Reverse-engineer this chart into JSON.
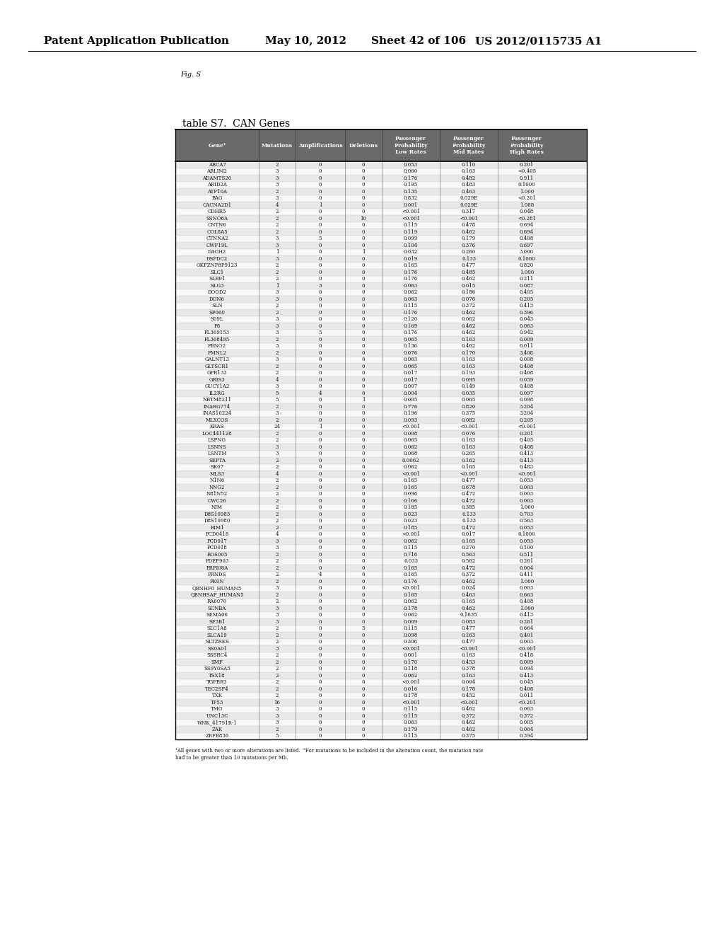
{
  "header_line1": "Patent Application Publication",
  "header_date": "May 10, 2012",
  "header_sheet": "Sheet 42 of 106",
  "header_patent": "US 2012/0115735 A1",
  "fig_label": "Fig. S",
  "table_title": "table S7.  CAN Genes",
  "col_headers": [
    "Gene¹",
    "Mutations",
    "Amplifications",
    "Deletions",
    "Passenger\nProbability\nLow Rates",
    "Passenger\nProbability\nMid Rates",
    "Passenger\nProbability\nHigh Rates"
  ],
  "rows": [
    [
      "ABCA7",
      "2",
      "0",
      "0",
      "0.053",
      "0.110",
      "0.201"
    ],
    [
      "ABLIM2",
      "3",
      "0",
      "0",
      "0.060",
      "0.163",
      "<0.405"
    ],
    [
      "ADAMTS20",
      "3",
      "0",
      "0",
      "0.176",
      "0.482",
      "0.911"
    ],
    [
      "ARID2A",
      "3",
      "0",
      "0",
      "0.195",
      "0.483",
      "0.1000"
    ],
    [
      "ATP10A",
      "2",
      "0",
      "0",
      "0.135",
      "0.463",
      "1.000"
    ],
    [
      "BAG",
      "3",
      "0",
      "0",
      "0.832",
      "0.029E",
      "<0.201"
    ],
    [
      "CACNA2D1",
      "4",
      "1",
      "0",
      "0.001",
      "0.029E",
      "1.088"
    ],
    [
      "CDHR5",
      "2",
      "0",
      "0",
      "<0.001",
      "0.317",
      "0.048"
    ],
    [
      "SSNO6A",
      "2",
      "0",
      "10",
      "<0.001",
      "<0.001",
      "<0.281"
    ],
    [
      "CNTN6",
      "2",
      "0",
      "0",
      "0.115",
      "0.478",
      "0.694"
    ],
    [
      "COL8A5",
      "2",
      "0",
      "0",
      "0.119",
      "0.462",
      "0.694"
    ],
    [
      "CTNNA2",
      "3",
      "5",
      "0",
      "0.099",
      "0.179",
      "0.408"
    ],
    [
      "CWF19L",
      "3",
      "0",
      "0",
      "0.104",
      "0.376",
      "0.697"
    ],
    [
      "DACH2",
      "1",
      "0",
      "1",
      "0.032",
      "0.260",
      "3.000"
    ],
    [
      "DSPDC2",
      "3",
      "0",
      "0",
      "0.019",
      "0.133",
      "0.1000"
    ],
    [
      "OKFZNP8P9123",
      "2",
      "0",
      "0",
      "0.165",
      "0.477",
      "0.820"
    ],
    [
      "SLC1",
      "2",
      "0",
      "0",
      "0.176",
      "0.485",
      "1.000"
    ],
    [
      "SLB01",
      "2",
      "0",
      "0",
      "0.176",
      "0.462",
      "0.211"
    ],
    [
      "SLG3",
      "1",
      "3",
      "0",
      "0.063",
      "0.015",
      "0.087"
    ],
    [
      "DOOD2",
      "3",
      "0",
      "0",
      "0.062",
      "0.186",
      "0.405"
    ],
    [
      "DON6",
      "3",
      "0",
      "0",
      "0.063",
      "0.076",
      "0.205"
    ],
    [
      "SLN",
      "2",
      "0",
      "0",
      "0.115",
      "0.372",
      "0.413"
    ],
    [
      "SP060",
      "2",
      "0",
      "0",
      "0.176",
      "0.462",
      "0.396"
    ],
    [
      "S09L",
      "3",
      "0",
      "0",
      "0.120",
      "0.062",
      "0.043"
    ],
    [
      "F8",
      "3",
      "0",
      "0",
      "0.169",
      "0.462",
      "0.063"
    ],
    [
      "FL369153",
      "3",
      "5",
      "0",
      "0.176",
      "0.462",
      "0.942"
    ],
    [
      "FL368495",
      "2",
      "0",
      "0",
      "0.065",
      "0.163",
      "0.009"
    ],
    [
      "FBNO2",
      "3",
      "0",
      "0",
      "0.136",
      "0.462",
      "0.011"
    ],
    [
      "FMNL2",
      "2",
      "0",
      "0",
      "0.076",
      "0.170",
      "3.408"
    ],
    [
      "GALNT13",
      "3",
      "0",
      "0",
      "0.063",
      "0.163",
      "0.008"
    ],
    [
      "GLTSCR1",
      "2",
      "0",
      "0",
      "0.065",
      "0.163",
      "0.408"
    ],
    [
      "GPR133",
      "2",
      "0",
      "0",
      "0.017",
      "0.193",
      "0.408"
    ],
    [
      "GRIS3",
      "4",
      "0",
      "0",
      "0.017",
      "0.095",
      "0.059"
    ],
    [
      "GUCY1A2",
      "3",
      "0",
      "0",
      "0.007",
      "0.149",
      "0.408"
    ],
    [
      "IL2RG",
      "5",
      "4",
      "0",
      "0.004",
      "0.035",
      "0.097"
    ],
    [
      "NBTM8211",
      "5",
      "0",
      "1",
      "0.005",
      "0.065",
      "0.098"
    ],
    [
      "INARG774",
      "2",
      "0",
      "0",
      "0.776",
      "0.820",
      "3.204"
    ],
    [
      "INAS10224",
      "3",
      "0",
      "0",
      "0.196",
      "0.375",
      "3.204"
    ],
    [
      "MLXCOS",
      "2",
      "0",
      "0",
      "0.093",
      "0.082",
      "0.205"
    ],
    [
      "KRAS",
      "24",
      "1",
      "0",
      "<0.001",
      "<0.001",
      "<0.001"
    ],
    [
      "LOC441128",
      "2",
      "0",
      "0",
      "0.008",
      "0.076",
      "0.201"
    ],
    [
      "LSFNG",
      "2",
      "0",
      "0",
      "0.065",
      "0.163",
      "0.405"
    ],
    [
      "LSNNS",
      "3",
      "0",
      "0",
      "0.062",
      "0.163",
      "0.408"
    ],
    [
      "LSNTM",
      "3",
      "0",
      "0",
      "0.068",
      "0.265",
      "0.413"
    ],
    [
      "SEPTA",
      "2",
      "0",
      "0",
      "0.0062",
      "0.162",
      "0.413"
    ],
    [
      "SK07",
      "2",
      "0",
      "0",
      "0.062",
      "0.165",
      "0.483"
    ],
    [
      "MLS3",
      "4",
      "0",
      "0",
      "<0.001",
      "<0.001",
      "<0.001"
    ],
    [
      "N1N6",
      "2",
      "0",
      "0",
      "0.165",
      "0.477",
      "0.053"
    ],
    [
      "NNG2",
      "2",
      "0",
      "0",
      "0.165",
      "0.678",
      "0.003"
    ],
    [
      "N81N52",
      "2",
      "0",
      "0",
      "0.096",
      "0.472",
      "0.003"
    ],
    [
      "CWC26",
      "2",
      "0",
      "0",
      "0.166",
      "0.472",
      "0.003"
    ],
    [
      "NIM",
      "2",
      "0",
      "0",
      "0.185",
      "0.385",
      "1.000"
    ],
    [
      "D8S10983",
      "2",
      "0",
      "0",
      "0.023",
      "0.133",
      "0.703"
    ],
    [
      "D8S10980",
      "2",
      "0",
      "0",
      "0.023",
      "0.133",
      "0.563"
    ],
    [
      "RIM1",
      "2",
      "0",
      "0",
      "0.185",
      "0.472",
      "0.053"
    ],
    [
      "PCD0418",
      "4",
      "0",
      "0",
      "<0.001",
      "0.017",
      "0.1000"
    ],
    [
      "PCD017",
      "3",
      "0",
      "0",
      "0.062",
      "0.165",
      "0.093"
    ],
    [
      "PCD018",
      "3",
      "0",
      "0",
      "0.115",
      "0.270",
      "0.100"
    ],
    [
      "ROS005",
      "2",
      "0",
      "0",
      "0.716",
      "0.563",
      "0.511"
    ],
    [
      "PDEF903",
      "2",
      "0",
      "0",
      "0.033",
      "0.562",
      "0.261"
    ],
    [
      "PRPI08A",
      "2",
      "0",
      "0",
      "0.165",
      "0.472",
      "0.004"
    ],
    [
      "PRNDS",
      "2",
      "4",
      "0",
      "0.165",
      "0.372",
      "0.411"
    ],
    [
      "PK0N",
      "2",
      "0",
      "0",
      "0.176",
      "0.462",
      "1.000"
    ],
    [
      "QBNHF0_HUMAN5",
      "3",
      "0",
      "0",
      "<0.001",
      "0.024",
      "0.003"
    ],
    [
      "QBNHSAF_HUMAN5",
      "2",
      "0",
      "0",
      "0.165",
      "0.463",
      "0.663"
    ],
    [
      "RA6070",
      "2",
      "0",
      "0",
      "0.062",
      "0.165",
      "0.408"
    ],
    [
      "SCNBA",
      "3",
      "0",
      "0",
      "0.178",
      "0.462",
      "1.000"
    ],
    [
      "SEMA06",
      "3",
      "0",
      "0",
      "0.062",
      "0.1635",
      "0.413"
    ],
    [
      "SF3B1",
      "3",
      "0",
      "0",
      "0.009",
      "0.083",
      "0.261"
    ],
    [
      "SLC1A8",
      "2",
      "0",
      "5",
      "0.115",
      "0.477",
      "0.664"
    ],
    [
      "SLCA19",
      "2",
      "0",
      "0",
      "0.098",
      "0.163",
      "0.401"
    ],
    [
      "SLTZRKS",
      "2",
      "0",
      "0",
      "0.306",
      "0.477",
      "0.003"
    ],
    [
      "SS0A01",
      "3",
      "0",
      "0",
      "<0.001",
      "<0.001",
      "<0.001"
    ],
    [
      "SSSRC4",
      "2",
      "0",
      "0",
      "0.001",
      "0.163",
      "0.418"
    ],
    [
      "SMF",
      "2",
      "0",
      "0",
      "0.170",
      "0.453",
      "0.009"
    ],
    [
      "SS9Y0SA5",
      "2",
      "0",
      "0",
      "0.118",
      "0.378",
      "0.094"
    ],
    [
      "TSX18",
      "2",
      "0",
      "0",
      "0.062",
      "0.163",
      "0.413"
    ],
    [
      "TGFBR3",
      "2",
      "0",
      "0",
      "<0.001",
      "0.004",
      "0.045"
    ],
    [
      "TEC2SF4",
      "2",
      "0",
      "0",
      "0.016",
      "0.178",
      "0.408"
    ],
    [
      "TXK",
      "2",
      "0",
      "0",
      "0.178",
      "0.452",
      "0.011"
    ],
    [
      "TP53",
      "16",
      "0",
      "0",
      "<0.001",
      "<0.001",
      "<0.201"
    ],
    [
      "TMO",
      "3",
      "0",
      "0",
      "0.115",
      "0.462",
      "0.063"
    ],
    [
      "UNC13C",
      "3",
      "0",
      "0",
      "0.115",
      "0.372",
      "0.372"
    ],
    [
      "WNK_41791R-1",
      "3",
      "0",
      "0",
      "0.063",
      "0.462",
      "0.005"
    ],
    [
      "ZAK",
      "2",
      "0",
      "0",
      "0.179",
      "0.462",
      "0.004"
    ],
    [
      "ZRFB836",
      "5",
      "0",
      "0",
      "0.115",
      "0.375",
      "0.394"
    ]
  ],
  "footnote": "¹All genes with two or more alterations are listed.  ²For mutations to be included in the alteration count, the mutation rate\nhad to be greater than 10 mutations per Mb.",
  "background_color": "#ffffff",
  "font_size_patent": 11,
  "font_size_fig": 7,
  "font_size_title": 10,
  "font_size_col_header": 5.5,
  "font_size_rows": 5.0,
  "font_size_footnote": 5.0
}
